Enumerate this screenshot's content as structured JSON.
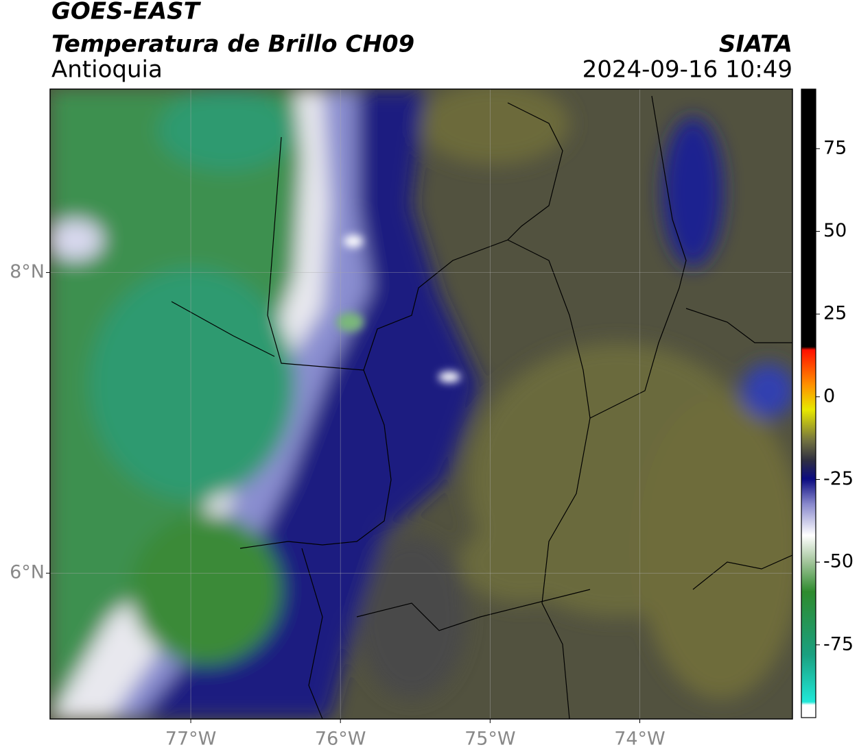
{
  "header": {
    "title": "GOES-EAST",
    "subtitle": "Temperatura de Brillo CH09",
    "region": "Antioquia",
    "source": "SIATA",
    "datetime": "2024-09-16 10:49"
  },
  "map": {
    "xlim": [
      -77.94,
      -72.98
    ],
    "ylim": [
      5.03,
      9.22
    ],
    "xticks": [
      {
        "value": -77,
        "label": "77°W"
      },
      {
        "value": -76,
        "label": "76°W"
      },
      {
        "value": -75,
        "label": "75°W"
      },
      {
        "value": -74,
        "label": "74°W"
      }
    ],
    "yticks": [
      {
        "value": 8,
        "label": "8°N"
      },
      {
        "value": 6,
        "label": "6°N"
      }
    ],
    "grid": true
  },
  "colorbar": {
    "lim": [
      -97,
      93
    ],
    "ticks": [
      75,
      50,
      25,
      0,
      -25,
      -50,
      -75
    ]
  }
}
